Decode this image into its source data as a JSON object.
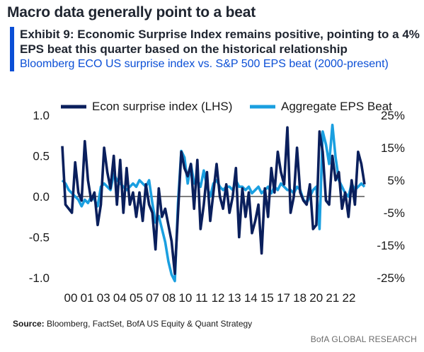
{
  "headline": "Macro data generally point to a beat",
  "exhibit": {
    "title": "Exhibit 9: Economic Surprise Index remains positive, pointing to a 4% EPS beat this quarter based on the historical relationship",
    "subtitle": "Bloomberg ECO US surprise index vs. S&P 500 EPS beat (2000-present)"
  },
  "source": {
    "label": "Source:",
    "text": "Bloomberg, FactSet, BofA US Equity & Quant Strategy"
  },
  "brand": "BofA GLOBAL RESEARCH",
  "colors": {
    "series1": "#0a1f5c",
    "series2": "#1a9fe0",
    "zero_line": "#555555"
  },
  "chart_data": {
    "type": "line",
    "x_tick_labels": [
      "00",
      "01",
      "03",
      "04",
      "05",
      "07",
      "08",
      "10",
      "11",
      "12",
      "13",
      "14",
      "15",
      "17",
      "18",
      "20",
      "21",
      "22"
    ],
    "x_range": [
      2000,
      2023.5
    ],
    "y_left": {
      "range": [
        -1.0,
        1.0
      ],
      "ticks": [
        1.0,
        0.5,
        0.0,
        -0.5,
        -1.0
      ],
      "tick_labels": [
        "1.0",
        "0.5",
        "0.0",
        "-0.5",
        "-1.0"
      ]
    },
    "y_right": {
      "range": [
        -25,
        25
      ],
      "ticks": [
        25,
        15,
        5,
        -5,
        -15,
        -25
      ],
      "tick_labels": [
        "25%",
        "15%",
        "5%",
        "-5%",
        "-15%",
        "-25%"
      ]
    },
    "legend_position": "top",
    "series": [
      {
        "name": "Econ surprise index (LHS)",
        "axis": "left",
        "x": [
          2000.0,
          2000.25,
          2000.5,
          2000.75,
          2001.0,
          2001.25,
          2001.5,
          2001.75,
          2002.0,
          2002.25,
          2002.5,
          2002.75,
          2003.0,
          2003.25,
          2003.5,
          2003.75,
          2004.0,
          2004.25,
          2004.5,
          2004.75,
          2005.0,
          2005.25,
          2005.5,
          2005.75,
          2006.0,
          2006.25,
          2006.5,
          2006.75,
          2007.0,
          2007.25,
          2007.5,
          2007.75,
          2008.0,
          2008.25,
          2008.5,
          2008.75,
          2009.0,
          2009.25,
          2009.5,
          2009.75,
          2010.0,
          2010.25,
          2010.5,
          2010.75,
          2011.0,
          2011.25,
          2011.5,
          2011.75,
          2012.0,
          2012.25,
          2012.5,
          2012.75,
          2013.0,
          2013.25,
          2013.5,
          2013.75,
          2014.0,
          2014.25,
          2014.5,
          2014.75,
          2015.0,
          2015.25,
          2015.5,
          2015.75,
          2016.0,
          2016.25,
          2016.5,
          2016.75,
          2017.0,
          2017.25,
          2017.5,
          2017.75,
          2018.0,
          2018.25,
          2018.5,
          2018.75,
          2019.0,
          2019.25,
          2019.5,
          2019.75,
          2020.0,
          2020.25,
          2020.5,
          2020.75,
          2021.0,
          2021.25,
          2021.5,
          2021.75,
          2022.0,
          2022.25,
          2022.5,
          2022.75,
          2023.0,
          2023.25,
          2023.5
        ],
        "y": [
          0.62,
          -0.1,
          -0.15,
          -0.2,
          0.42,
          0.05,
          -0.05,
          0.68,
          0.2,
          -0.05,
          0.05,
          -0.35,
          -0.1,
          0.6,
          0.3,
          0.1,
          0.5,
          -0.1,
          0.45,
          -0.2,
          0.35,
          -0.1,
          0.05,
          -0.25,
          0.05,
          -0.3,
          0.15,
          -0.1,
          -0.2,
          -0.65,
          0.1,
          -0.25,
          -0.15,
          -0.35,
          -0.55,
          -0.95,
          -0.2,
          0.55,
          0.35,
          0.25,
          0.4,
          -0.15,
          0.45,
          -0.4,
          -0.1,
          0.3,
          -0.3,
          0.05,
          0.4,
          0.0,
          -0.15,
          0.15,
          -0.2,
          0.0,
          0.35,
          -0.5,
          0.1,
          -0.25,
          0.05,
          -0.45,
          -0.3,
          -0.1,
          -0.7,
          0.1,
          -0.25,
          0.35,
          0.05,
          0.55,
          0.3,
          0.15,
          0.85,
          -0.2,
          0.0,
          0.6,
          0.05,
          -0.05,
          -0.1,
          0.15,
          -0.4,
          -0.35,
          0.8,
          0.55,
          -0.05,
          -0.1,
          0.5,
          0.2,
          0.3,
          -0.15,
          0.05,
          -0.25,
          0.2,
          -0.1,
          0.55,
          0.4,
          0.15
        ]
      },
      {
        "name": "Aggregate EPS Beat",
        "axis": "right",
        "x": [
          2000.0,
          2000.25,
          2000.5,
          2000.75,
          2001.0,
          2001.25,
          2001.5,
          2001.75,
          2002.0,
          2002.25,
          2002.5,
          2002.75,
          2003.0,
          2003.25,
          2003.5,
          2003.75,
          2004.0,
          2004.25,
          2004.5,
          2004.75,
          2005.0,
          2005.25,
          2005.5,
          2005.75,
          2006.0,
          2006.25,
          2006.5,
          2006.75,
          2007.0,
          2007.25,
          2007.5,
          2007.75,
          2008.0,
          2008.25,
          2008.5,
          2008.75,
          2009.0,
          2009.25,
          2009.5,
          2009.75,
          2010.0,
          2010.25,
          2010.5,
          2010.75,
          2011.0,
          2011.25,
          2011.5,
          2011.75,
          2012.0,
          2012.25,
          2012.5,
          2012.75,
          2013.0,
          2013.25,
          2013.5,
          2013.75,
          2014.0,
          2014.25,
          2014.5,
          2014.75,
          2015.0,
          2015.25,
          2015.5,
          2015.75,
          2016.0,
          2016.25,
          2016.5,
          2016.75,
          2017.0,
          2017.25,
          2017.5,
          2017.75,
          2018.0,
          2018.25,
          2018.5,
          2018.75,
          2019.0,
          2019.25,
          2019.5,
          2019.75,
          2020.0,
          2020.25,
          2020.5,
          2020.75,
          2021.0,
          2021.25,
          2021.5,
          2021.75,
          2022.0,
          2022.25,
          2022.5,
          2022.75,
          2023.0,
          2023.25,
          2023.5
        ],
        "y": [
          5,
          4,
          2,
          1,
          0,
          -1,
          -3,
          -1,
          -2,
          0,
          -1,
          -3,
          3,
          4,
          3,
          2,
          7,
          5,
          4,
          3,
          2,
          3,
          4,
          3,
          5,
          4,
          3,
          5,
          -2,
          -8,
          -6,
          -10,
          -14,
          -20,
          -24,
          -26,
          -2,
          14,
          12,
          4,
          10,
          4,
          5,
          3,
          8,
          3,
          0,
          4,
          5,
          3,
          2,
          3,
          3,
          2,
          5,
          3,
          3,
          2,
          3,
          1,
          2,
          3,
          1,
          2,
          3,
          1,
          3,
          2,
          4,
          3,
          2,
          2,
          1,
          3,
          2,
          -1,
          -2,
          0,
          2,
          3,
          -10,
          20,
          16,
          10,
          22,
          12,
          5,
          3,
          1,
          0,
          4,
          2,
          3,
          4,
          3
        ]
      }
    ]
  }
}
